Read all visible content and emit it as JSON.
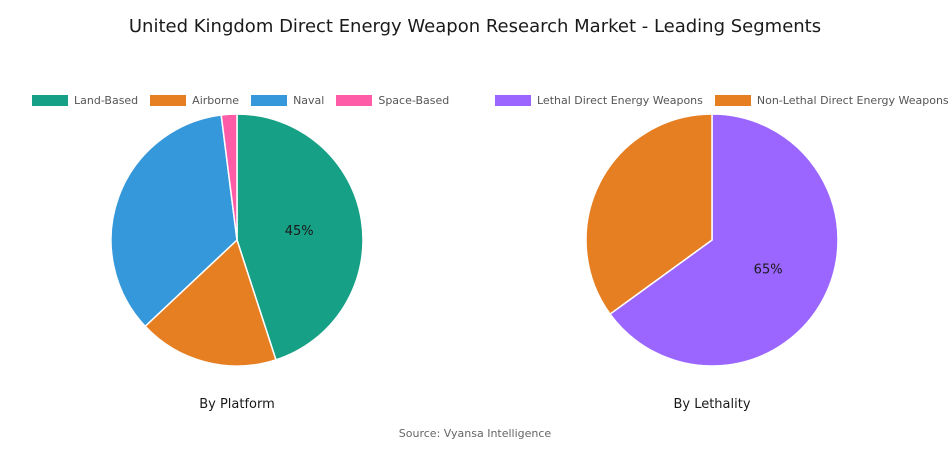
{
  "title": "United Kingdom Direct Energy Weapon Research Market - Leading Segments",
  "source": "Source: Vyansa Intelligence",
  "chart_data": [
    {
      "type": "pie",
      "subtitle": "By Platform",
      "legend_position": "top",
      "slices": [
        {
          "label": "Land-Based",
          "value": 45,
          "color": "#16a085",
          "shown_label": "45%"
        },
        {
          "label": "Airborne",
          "value": 18,
          "color": "#e67e22",
          "shown_label": ""
        },
        {
          "label": "Naval",
          "value": 35,
          "color": "#3498db",
          "shown_label": ""
        },
        {
          "label": "Space-Based",
          "value": 2,
          "color": "#ff5ca8",
          "shown_label": ""
        }
      ]
    },
    {
      "type": "pie",
      "subtitle": "By Lethality",
      "legend_position": "top",
      "slices": [
        {
          "label": "Lethal Direct Energy Weapons",
          "value": 65,
          "color": "#9b66ff",
          "shown_label": "65%"
        },
        {
          "label": "Non-Lethal Direct Energy Weapons",
          "value": 35,
          "color": "#e67e22",
          "shown_label": ""
        }
      ]
    }
  ]
}
